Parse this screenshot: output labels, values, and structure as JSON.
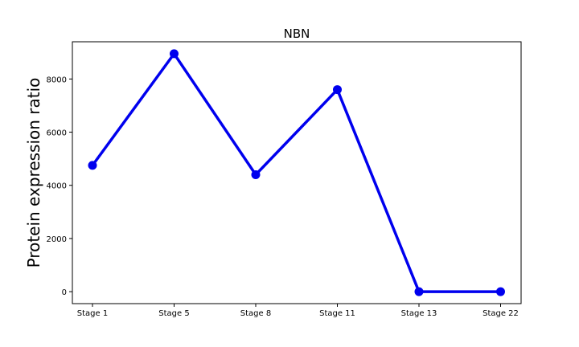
{
  "chart_data": {
    "type": "line",
    "title": "NBN",
    "xlabel": "",
    "ylabel": "Protein expression ratio",
    "categories": [
      "Stage 1",
      "Stage 5",
      "Stage 8",
      "Stage 11",
      "Stage 13",
      "Stage 22"
    ],
    "series": [
      {
        "values": [
          4750,
          8950,
          4400,
          7600,
          0,
          0
        ]
      }
    ],
    "ylim": [
      -450,
      9400
    ],
    "yticks": [
      0,
      2000,
      4000,
      6000,
      8000
    ],
    "ytick_labels": [
      "0",
      "2000",
      "4000",
      "6000",
      "8000"
    ],
    "grid": false,
    "legend": "none",
    "line_color": "#0000ee"
  }
}
